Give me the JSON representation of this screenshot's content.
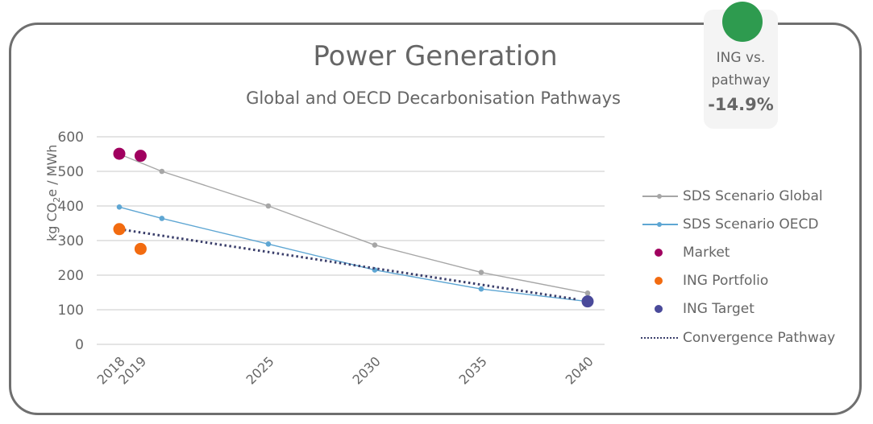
{
  "badge": {
    "status_color": "#2e9b4f",
    "label_line1": "ING vs.",
    "label_line2": "pathway",
    "value": "-14.9%"
  },
  "chart_data": {
    "type": "line",
    "title": "Power Generation",
    "subtitle": "Global and OECD Decarbonisation Pathways",
    "xlabel": "",
    "ylabel": "kg CO2e / MWh",
    "ylabel_parts": {
      "pre": "kg CO",
      "sub": "2",
      "post": "e / MWh"
    },
    "ylim": [
      0,
      600
    ],
    "yticks": [
      0,
      100,
      200,
      300,
      400,
      500,
      600
    ],
    "xlim": [
      2018,
      2040
    ],
    "xticks": [
      "2018",
      "2019",
      "2025",
      "2030",
      "2035",
      "2040"
    ],
    "grid": true,
    "legend_position": "right",
    "series": [
      {
        "name": "SDS Scenario Global",
        "kind": "line-marker",
        "color": "#a6a6a6",
        "x": [
          2018,
          2020,
          2025,
          2030,
          2035,
          2040
        ],
        "y": [
          550,
          500,
          400,
          287,
          208,
          148
        ]
      },
      {
        "name": "SDS Scenario OECD",
        "kind": "line-marker",
        "color": "#5ea6d3",
        "x": [
          2018,
          2020,
          2025,
          2030,
          2035,
          2040
        ],
        "y": [
          397,
          364,
          290,
          215,
          160,
          124
        ]
      },
      {
        "name": "Market",
        "kind": "scatter",
        "color": "#a0005f",
        "x": [
          2018,
          2019
        ],
        "y": [
          551,
          545
        ]
      },
      {
        "name": "ING Portfolio",
        "kind": "scatter",
        "color": "#f26b10",
        "x": [
          2018,
          2019
        ],
        "y": [
          333,
          276
        ]
      },
      {
        "name": "ING Target",
        "kind": "scatter",
        "color": "#4a4a9a",
        "x": [
          2040
        ],
        "y": [
          124
        ]
      },
      {
        "name": "Convergence Pathway",
        "kind": "dotted-line",
        "color": "#3b3f6b",
        "x": [
          2018,
          2039.5
        ],
        "y": [
          333,
          130
        ]
      }
    ]
  }
}
